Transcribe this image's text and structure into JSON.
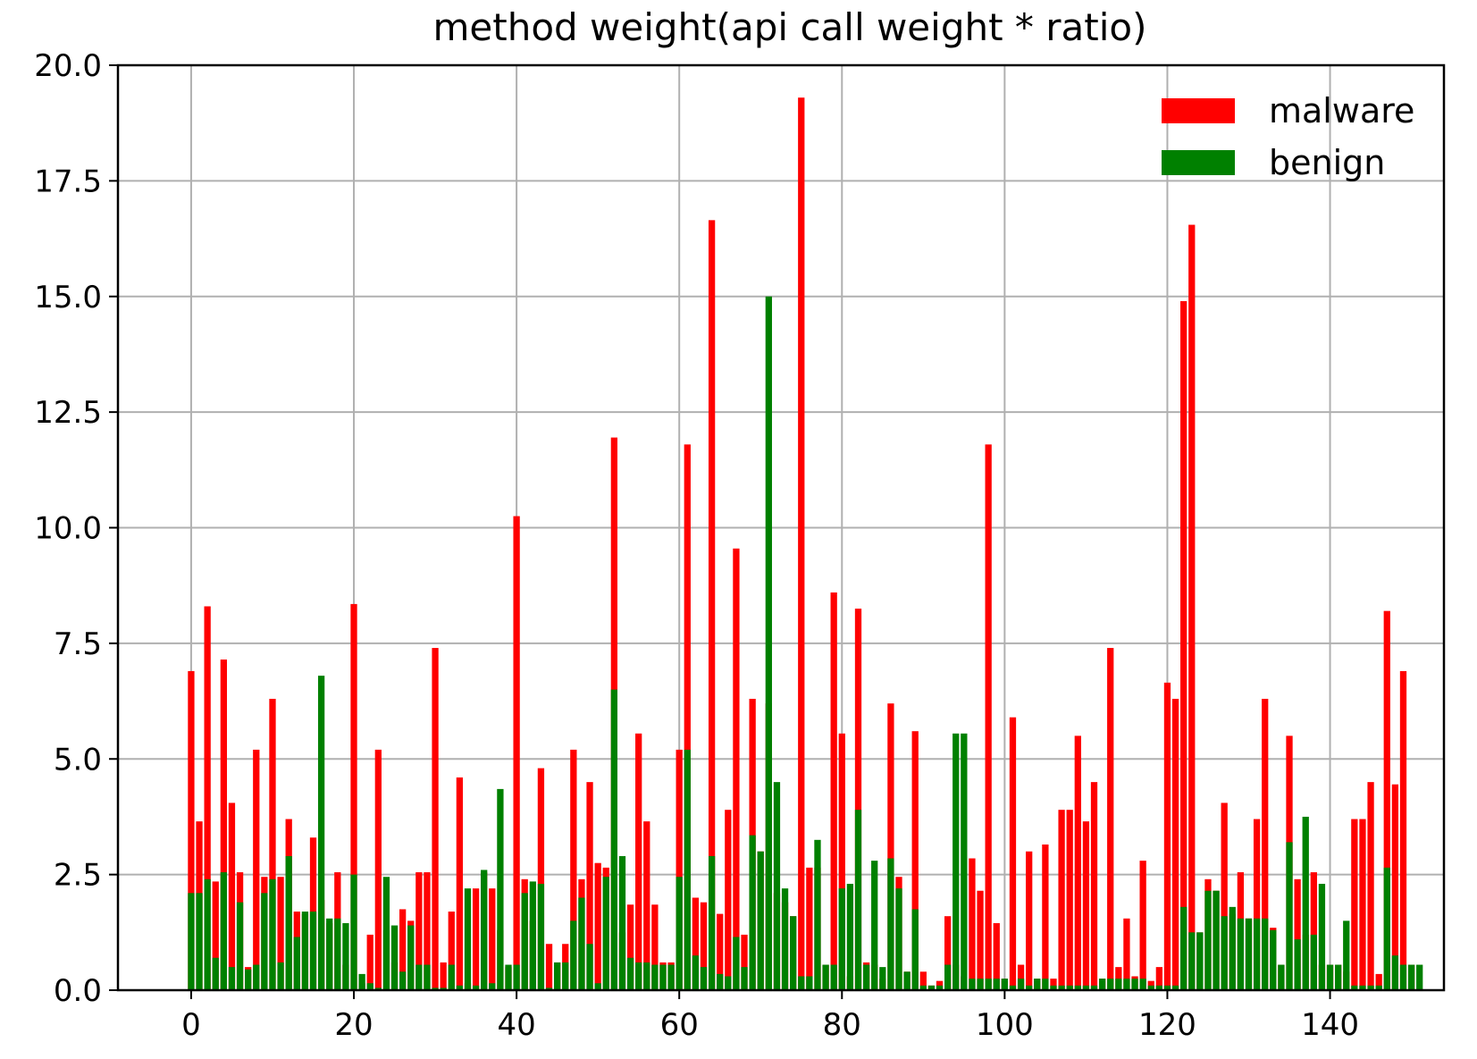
{
  "chart_data": {
    "type": "bar",
    "title": "method weight(api call weight * ratio)",
    "xlabel": "",
    "ylabel": "",
    "xlim": [
      -9,
      154
    ],
    "ylim": [
      0,
      20
    ],
    "xticks": [
      0,
      20,
      40,
      60,
      80,
      100,
      120,
      140
    ],
    "xtick_labels": [
      "0",
      "20",
      "40",
      "60",
      "80",
      "100",
      "120",
      "140"
    ],
    "yticks": [
      0,
      2.5,
      5,
      7.5,
      10,
      12.5,
      15,
      17.5,
      20
    ],
    "ytick_labels": [
      "0.0",
      "2.5",
      "5.0",
      "7.5",
      "10.0",
      "12.5",
      "15.0",
      "17.5",
      "20.0"
    ],
    "grid": true,
    "legend_position": "top-right",
    "bar_width": 0.8,
    "series": [
      {
        "name": "malware",
        "color": "#ff0000",
        "values": [
          6.9,
          3.65,
          8.3,
          2.35,
          7.15,
          4.05,
          2.55,
          0.5,
          5.2,
          2.45,
          6.3,
          2.45,
          3.7,
          1.7,
          1.65,
          3.3,
          1.95,
          1.45,
          2.55,
          0.55,
          8.35,
          0.15,
          1.2,
          5.2,
          1.3,
          0.6,
          1.75,
          1.5,
          2.55,
          2.55,
          7.4,
          0.6,
          1.7,
          4.6,
          0.15,
          2.2,
          2.55,
          2.2,
          1.3,
          0.5,
          10.25,
          2.4,
          1.5,
          4.8,
          1.0,
          0.6,
          1.0,
          5.2,
          2.4,
          4.5,
          2.75,
          2.65,
          11.95,
          1.25,
          1.85,
          5.55,
          3.65,
          1.85,
          0.6,
          0.6,
          5.2,
          11.8,
          2.0,
          1.9,
          16.65,
          1.65,
          3.9,
          9.55,
          1.2,
          6.3,
          3.0,
          6.2,
          2.1,
          1.9,
          1.6,
          19.3,
          2.65,
          2.65,
          0.55,
          8.6,
          5.55,
          0.3,
          8.25,
          0.6,
          0.55,
          0.25,
          6.2,
          2.45,
          0.4,
          5.6,
          0.4,
          0.1,
          0.2,
          1.6,
          0.55,
          0.3,
          2.85,
          2.15,
          11.8,
          1.45,
          0.25,
          5.9,
          0.55,
          3.0,
          0.25,
          3.15,
          0.25,
          3.9,
          3.9,
          5.5,
          3.65,
          4.5,
          0.25,
          7.4,
          0.5,
          1.55,
          0.3,
          2.8,
          0.2,
          0.5,
          6.65,
          6.3,
          14.9,
          16.55,
          1.25,
          2.4,
          2.15,
          4.05,
          1.65,
          2.55,
          1.55,
          3.7,
          6.3,
          1.35,
          0.55,
          5.5,
          2.4,
          1.2,
          2.55,
          0.55,
          0.55,
          0.55,
          0.4,
          3.7,
          3.7,
          4.5,
          0.35,
          8.2,
          4.45,
          6.9,
          0.55
        ]
      },
      {
        "name": "benign",
        "color": "#008000",
        "values": [
          2.1,
          2.1,
          2.4,
          0.7,
          2.55,
          0.5,
          1.9,
          0.45,
          0.55,
          2.1,
          2.4,
          0.6,
          2.9,
          1.15,
          1.7,
          1.7,
          6.8,
          1.55,
          1.55,
          1.45,
          2.5,
          0.35,
          0.15,
          0.05,
          2.45,
          1.4,
          0.4,
          1.4,
          0.55,
          0.55,
          0.05,
          0.05,
          0.55,
          0.1,
          2.2,
          0.1,
          2.6,
          0.15,
          4.35,
          0.55,
          0.55,
          2.1,
          2.35,
          2.3,
          0.05,
          0.6,
          0.6,
          1.5,
          2.0,
          1.0,
          0.15,
          2.45,
          6.5,
          2.9,
          0.7,
          0.6,
          0.6,
          0.55,
          0.55,
          0.55,
          2.45,
          5.2,
          0.75,
          0.5,
          2.9,
          0.35,
          0.3,
          1.15,
          0.5,
          3.35,
          3.0,
          15.0,
          4.5,
          2.2,
          1.6,
          0.3,
          0.3,
          3.25,
          0.55,
          0.55,
          2.2,
          2.3,
          3.9,
          0.55,
          2.8,
          0.5,
          2.85,
          2.2,
          0.4,
          1.75,
          0.1,
          0.1,
          0.1,
          0.55,
          5.55,
          5.55,
          0.25,
          0.25,
          0.25,
          0.25,
          0.25,
          0.1,
          0.25,
          0.1,
          0.25,
          0.25,
          0.1,
          0.1,
          0.1,
          0.1,
          0.1,
          0.1,
          0.25,
          0.25,
          0.25,
          0.25,
          0.25,
          0.25,
          0.1,
          0.1,
          0.1,
          0.1,
          1.8,
          1.25,
          1.25,
          2.15,
          2.15,
          1.6,
          1.8,
          1.55,
          1.55,
          1.55,
          1.55,
          1.3,
          0.55,
          3.2,
          1.1,
          3.75,
          1.2,
          2.3,
          0.55,
          0.55,
          1.5,
          0.1,
          0.1,
          0.1,
          0.1,
          2.65,
          0.75,
          0.55,
          0.55,
          0.55
        ]
      }
    ]
  }
}
